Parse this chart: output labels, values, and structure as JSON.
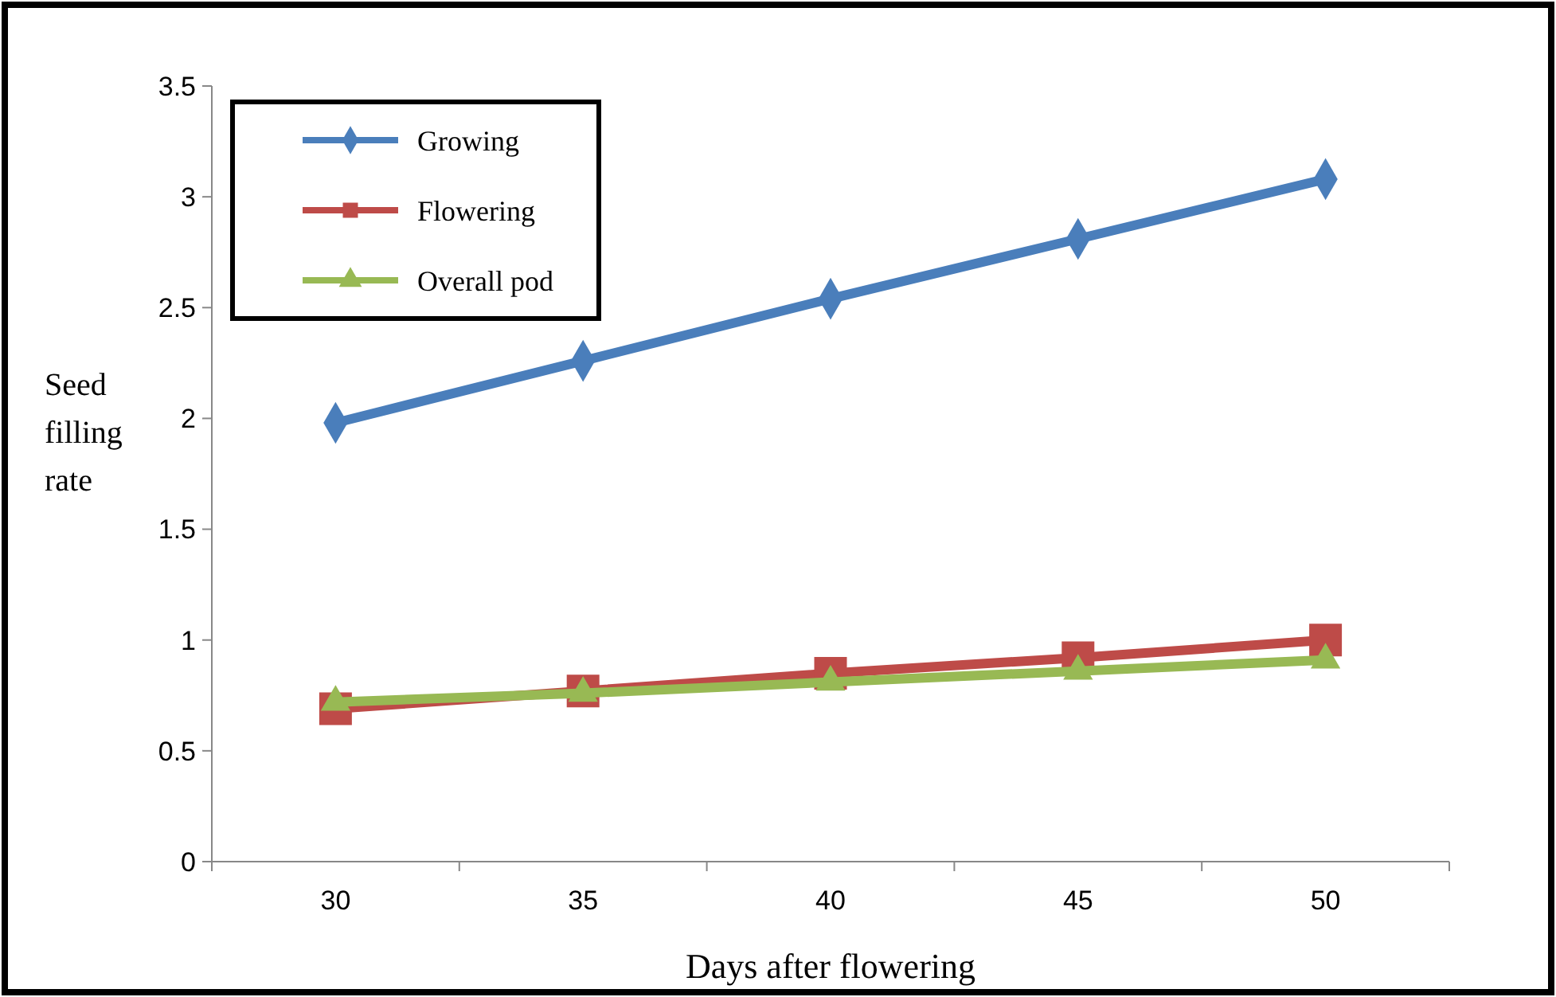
{
  "chart_data": {
    "type": "line",
    "xlabel": "Days after flowering",
    "ylabel": "Seed filling rate",
    "categories": [
      "30",
      "35",
      "40",
      "45",
      "50"
    ],
    "series": [
      {
        "name": "Growing",
        "color": "#4a7ebb",
        "marker": "diamond",
        "values": [
          1.98,
          2.26,
          2.54,
          2.81,
          3.08
        ]
      },
      {
        "name": "Flowering",
        "color": "#be4b48",
        "marker": "square",
        "values": [
          0.69,
          0.77,
          0.85,
          0.92,
          1.0
        ]
      },
      {
        "name": "Overall pod",
        "color": "#98b954",
        "marker": "triangle",
        "values": [
          0.72,
          0.76,
          0.81,
          0.86,
          0.91
        ]
      }
    ],
    "ylim": [
      0,
      3.5
    ],
    "yticks": [
      0,
      0.5,
      1,
      1.5,
      2,
      2.5,
      3,
      3.5
    ],
    "grid": false,
    "legend": "top left"
  }
}
